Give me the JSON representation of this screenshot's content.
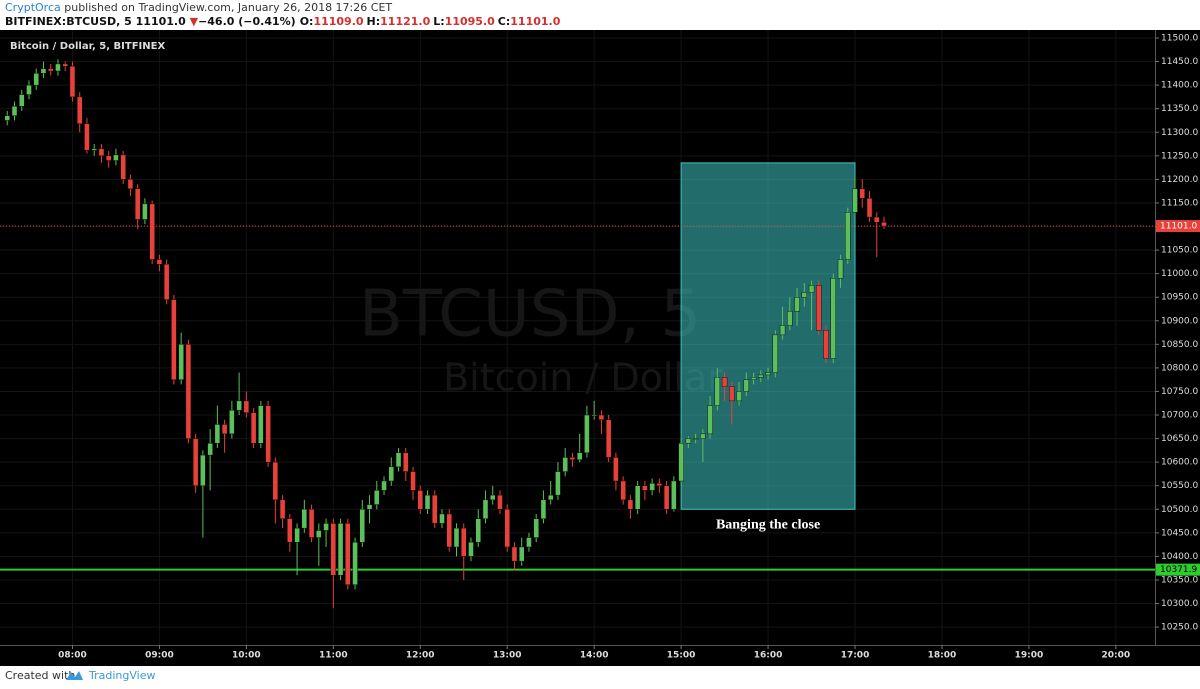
{
  "header": {
    "author": "CryptOrca",
    "published": "published on TradingView.com, January 26, 2018 17:26 CET",
    "symbol": "BITFINEX:BTCUSD, 5",
    "last": "11101.0",
    "arrow": "▼",
    "change": "−46.0 (−0.41%)",
    "ohlc": [
      {
        "label": "O:",
        "value": "11109.0"
      },
      {
        "label": "H:",
        "value": "11121.0"
      },
      {
        "label": "L:",
        "value": "11095.0"
      },
      {
        "label": "C:",
        "value": "11101.0"
      }
    ]
  },
  "footer": {
    "created": "Created with",
    "brand": "TradingView"
  },
  "chart_data": {
    "type": "candlestick",
    "legend": "Bitcoin / Dollar, 5, BITFINEX",
    "watermark": [
      "BTCUSD, 5",
      "Bitcoin / Dollar"
    ],
    "up_color": "#5cbf5c",
    "down_color": "#e8413c",
    "grid": true,
    "x": [
      "07:15",
      "07:20",
      "07:25",
      "07:30",
      "07:35",
      "07:40",
      "07:45",
      "07:50",
      "07:55",
      "08:00",
      "08:05",
      "08:10",
      "08:15",
      "08:20",
      "08:25",
      "08:30",
      "08:35",
      "08:40",
      "08:45",
      "08:50",
      "08:55",
      "09:00",
      "09:05",
      "09:10",
      "09:15",
      "09:20",
      "09:25",
      "09:30",
      "09:35",
      "09:40",
      "09:45",
      "09:50",
      "09:55",
      "10:00",
      "10:05",
      "10:10",
      "10:15",
      "10:20",
      "10:25",
      "10:30",
      "10:35",
      "10:40",
      "10:45",
      "10:50",
      "10:55",
      "11:00",
      "11:05",
      "11:10",
      "11:15",
      "11:20",
      "11:25",
      "11:30",
      "11:35",
      "11:40",
      "11:45",
      "11:50",
      "11:55",
      "12:00",
      "12:05",
      "12:10",
      "12:15",
      "12:20",
      "12:25",
      "12:30",
      "12:35",
      "12:40",
      "12:45",
      "12:50",
      "12:55",
      "13:00",
      "13:05",
      "13:10",
      "13:15",
      "13:20",
      "13:25",
      "13:30",
      "13:35",
      "13:40",
      "13:45",
      "13:50",
      "13:55",
      "14:00",
      "14:05",
      "14:10",
      "14:15",
      "14:20",
      "14:25",
      "14:30",
      "14:35",
      "14:40",
      "14:45",
      "14:50",
      "14:55",
      "15:00",
      "15:05",
      "15:10",
      "15:15",
      "15:20",
      "15:25",
      "15:30",
      "15:35",
      "15:40",
      "15:45",
      "15:50",
      "15:55",
      "16:00",
      "16:05",
      "16:10",
      "16:15",
      "16:20",
      "16:25",
      "16:30",
      "16:35",
      "16:40",
      "16:45",
      "16:50",
      "16:55",
      "17:00",
      "17:05",
      "17:10",
      "17:15",
      "17:20"
    ],
    "open": [
      11325,
      11335,
      11355,
      11380,
      11400,
      11425,
      11435,
      11430,
      11445,
      11440,
      11375,
      11318,
      11262,
      11265,
      11250,
      11240,
      11252,
      11200,
      11180,
      11115,
      11148,
      11030,
      11020,
      10945,
      10775,
      10850,
      10650,
      10550,
      10615,
      10640,
      10680,
      10660,
      10710,
      10730,
      10705,
      10640,
      10720,
      10600,
      10520,
      10480,
      10430,
      10460,
      10500,
      10440,
      10455,
      10470,
      10360,
      10470,
      10340,
      10430,
      10500,
      10510,
      10540,
      10560,
      10590,
      10620,
      10580,
      10540,
      10500,
      10530,
      10470,
      10490,
      10420,
      10460,
      10400,
      10430,
      10480,
      10520,
      10530,
      10500,
      10420,
      10390,
      10420,
      10440,
      10480,
      10520,
      10530,
      10580,
      10610,
      10605,
      10620,
      10700,
      10700,
      10690,
      10610,
      10560,
      10520,
      10500,
      10550,
      10540,
      10555,
      10550,
      10500,
      10560,
      10640,
      10650,
      10650,
      10660,
      10720,
      10780,
      10760,
      10730,
      10750,
      10775,
      10780,
      10785,
      10790,
      10870,
      10890,
      10920,
      10950,
      10960,
      10975,
      10880,
      10820,
      10990,
      11030,
      11130,
      11180,
      11160,
      11120,
      11109
    ],
    "high": [
      11345,
      11365,
      11390,
      11410,
      11435,
      11450,
      11445,
      11455,
      11450,
      11450,
      11385,
      11330,
      11275,
      11275,
      11260,
      11265,
      11260,
      11210,
      11190,
      11160,
      11155,
      11040,
      11030,
      10955,
      10875,
      10860,
      10660,
      10625,
      10670,
      10720,
      10690,
      10730,
      10790,
      10750,
      10715,
      10730,
      10730,
      10610,
      10530,
      10490,
      10470,
      10520,
      10510,
      10470,
      10480,
      10480,
      10480,
      10480,
      10440,
      10520,
      10530,
      10560,
      10570,
      10610,
      10630,
      10630,
      10590,
      10550,
      10540,
      10540,
      10500,
      10500,
      10470,
      10470,
      10440,
      10500,
      10540,
      10550,
      10540,
      10510,
      10430,
      10440,
      10450,
      10490,
      10540,
      10560,
      10600,
      10630,
      10620,
      10660,
      10720,
      10730,
      10710,
      10700,
      10620,
      10570,
      10530,
      10560,
      10560,
      10565,
      10565,
      10560,
      10570,
      10650,
      10655,
      10660,
      10670,
      10740,
      10800,
      10790,
      10770,
      10770,
      10790,
      10790,
      10795,
      10800,
      10880,
      10930,
      10950,
      10970,
      10980,
      10985,
      10985,
      10890,
      11000,
      11040,
      11140,
      11210,
      11200,
      11175,
      11130,
      11121
    ],
    "low": [
      11315,
      11325,
      11345,
      11370,
      11390,
      11415,
      11420,
      11420,
      11430,
      11365,
      11300,
      11255,
      11250,
      11235,
      11225,
      11230,
      11190,
      11165,
      11095,
      11105,
      11020,
      11005,
      10935,
      10765,
      10765,
      10640,
      10535,
      10440,
      10540,
      10630,
      10620,
      10650,
      10700,
      10695,
      10630,
      10630,
      10590,
      10470,
      10460,
      10410,
      10360,
      10450,
      10430,
      10380,
      10420,
      10290,
      10350,
      10330,
      10330,
      10420,
      10470,
      10500,
      10530,
      10550,
      10580,
      10560,
      10520,
      10490,
      10490,
      10460,
      10460,
      10410,
      10400,
      10350,
      10390,
      10420,
      10470,
      10510,
      10490,
      10410,
      10370,
      10380,
      10410,
      10430,
      10470,
      10510,
      10520,
      10570,
      10590,
      10600,
      10610,
      10690,
      10660,
      10600,
      10540,
      10510,
      10480,
      10490,
      10520,
      10530,
      10535,
      10490,
      10495,
      10550,
      10630,
      10640,
      10600,
      10650,
      10710,
      10730,
      10680,
      10720,
      10740,
      10765,
      10770,
      10775,
      10780,
      10860,
      10880,
      10890,
      10930,
      10880,
      10870,
      10810,
      10810,
      10970,
      11020,
      11120,
      11140,
      11110,
      11035,
      11095
    ],
    "close": [
      11335,
      11355,
      11380,
      11400,
      11425,
      11435,
      11430,
      11445,
      11440,
      11375,
      11318,
      11262,
      11265,
      11250,
      11240,
      11252,
      11200,
      11180,
      11115,
      11148,
      11030,
      11020,
      10945,
      10775,
      10850,
      10650,
      10550,
      10615,
      10640,
      10680,
      10660,
      10710,
      10730,
      10705,
      10640,
      10720,
      10600,
      10520,
      10480,
      10430,
      10460,
      10500,
      10440,
      10455,
      10470,
      10360,
      10470,
      10340,
      10430,
      10500,
      10510,
      10540,
      10560,
      10590,
      10620,
      10580,
      10540,
      10500,
      10530,
      10470,
      10490,
      10420,
      10460,
      10400,
      10430,
      10480,
      10520,
      10530,
      10500,
      10420,
      10390,
      10420,
      10440,
      10480,
      10520,
      10530,
      10580,
      10610,
      10605,
      10620,
      10700,
      10700,
      10690,
      10610,
      10560,
      10520,
      10500,
      10550,
      10540,
      10555,
      10550,
      10500,
      10560,
      10640,
      10650,
      10650,
      10660,
      10720,
      10780,
      10760,
      10730,
      10750,
      10775,
      10780,
      10785,
      10790,
      10870,
      10890,
      10920,
      10950,
      10960,
      10975,
      10880,
      10820,
      10990,
      11030,
      11130,
      11180,
      11160,
      11120,
      11109,
      11101
    ],
    "xlim": [
      "07:10",
      "20:27"
    ],
    "xticks": [
      "08:00",
      "09:00",
      "10:00",
      "11:00",
      "12:00",
      "13:00",
      "14:00",
      "15:00",
      "16:00",
      "17:00",
      "18:00",
      "19:00",
      "20:00"
    ],
    "ylim": [
      10212,
      11517
    ],
    "yticks": [
      {
        "value": 10250,
        "label": "10250.0"
      },
      {
        "value": 10300,
        "label": "10300.0"
      },
      {
        "value": 10350,
        "label": "10350.0"
      },
      {
        "value": 10400,
        "label": "10400.0"
      },
      {
        "value": 10450,
        "label": "10450.0"
      },
      {
        "value": 10500,
        "label": "10500.0"
      },
      {
        "value": 10550,
        "label": "10550.0"
      },
      {
        "value": 10600,
        "label": "10600.0"
      },
      {
        "value": 10650,
        "label": "10650.0"
      },
      {
        "value": 10700,
        "label": "10700.0"
      },
      {
        "value": 10750,
        "label": "10750.0"
      },
      {
        "value": 10800,
        "label": "10800.0"
      },
      {
        "value": 10850,
        "label": "10850.0"
      },
      {
        "value": 10900,
        "label": "10900.0"
      },
      {
        "value": 10950,
        "label": "10950.0"
      },
      {
        "value": 11000,
        "label": "11000.0"
      },
      {
        "value": 11050,
        "label": "11050.0"
      },
      {
        "value": 11100,
        "label": "11100.0"
      },
      {
        "value": 11150,
        "label": "11150.0"
      },
      {
        "value": 11200,
        "label": "11200.0"
      },
      {
        "value": 11250,
        "label": "11250.0"
      },
      {
        "value": 11300,
        "label": "11300.0"
      },
      {
        "value": 11350,
        "label": "11350.0"
      },
      {
        "value": 11400,
        "label": "11400.0"
      },
      {
        "value": 11450,
        "label": "11450.0"
      },
      {
        "value": 11500,
        "label": "11500.0"
      }
    ],
    "hlines": [
      {
        "value": 11101,
        "label": "11101.0",
        "color": "#e8413c",
        "style": "dotted"
      },
      {
        "value": 10371.9,
        "label": "10371.9",
        "color": "#2ecc2e",
        "style": "solid"
      }
    ],
    "highlight": {
      "x": [
        "15:00",
        "17:00"
      ],
      "y": [
        10500,
        11235
      ],
      "color": "#40c4c4",
      "text": "Banging the close"
    }
  }
}
